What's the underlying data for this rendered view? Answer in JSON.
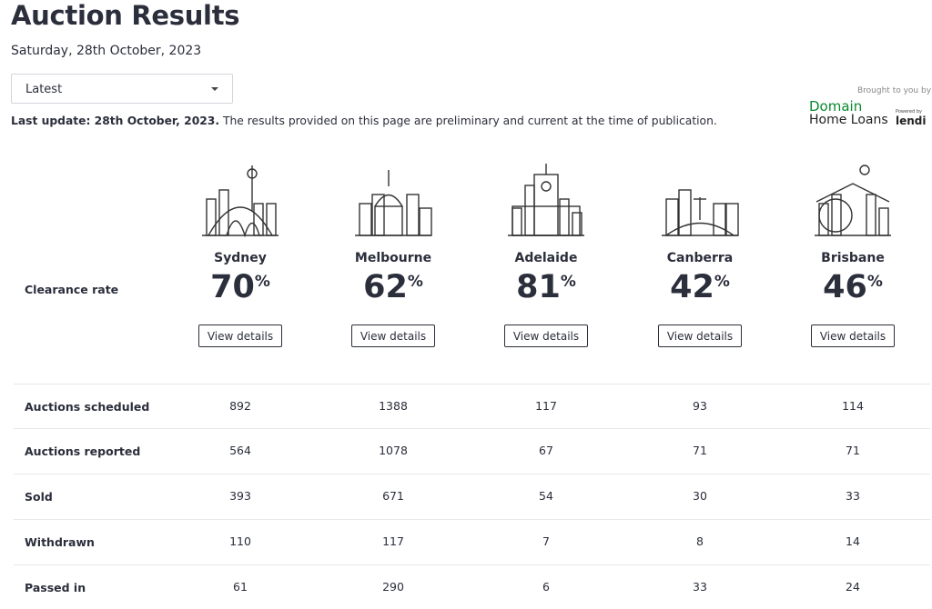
{
  "header": {
    "title": "Auction Results",
    "date": "Saturday, 28th October, 2023",
    "dropdown": "Latest"
  },
  "sponsor": {
    "brought": "Brought to you by",
    "brand1": "Domain",
    "brand2": "Home Loans",
    "powered": "Powered by",
    "partner": "lendi"
  },
  "update": {
    "bold": "Last update: 28th October, 2023.",
    "rest": " The results provided on this page are preliminary and current at the time of publication."
  },
  "clearance_label": "Clearance rate",
  "percent_sign": "%",
  "button_label": "View details",
  "cities": [
    {
      "name": "Sydney",
      "rate": 70
    },
    {
      "name": "Melbourne",
      "rate": 62
    },
    {
      "name": "Adelaide",
      "rate": 81
    },
    {
      "name": "Canberra",
      "rate": 42
    },
    {
      "name": "Brisbane",
      "rate": 46
    }
  ],
  "table": {
    "rows": [
      {
        "label": "Auctions scheduled",
        "values": [
          892,
          1388,
          117,
          93,
          114
        ]
      },
      {
        "label": "Auctions reported",
        "values": [
          564,
          1078,
          67,
          71,
          71
        ]
      },
      {
        "label": "Sold",
        "values": [
          393,
          671,
          54,
          30,
          33
        ]
      },
      {
        "label": "Withdrawn",
        "values": [
          110,
          117,
          7,
          8,
          14
        ]
      },
      {
        "label": "Passed in",
        "values": [
          61,
          290,
          6,
          33,
          24
        ]
      }
    ]
  }
}
